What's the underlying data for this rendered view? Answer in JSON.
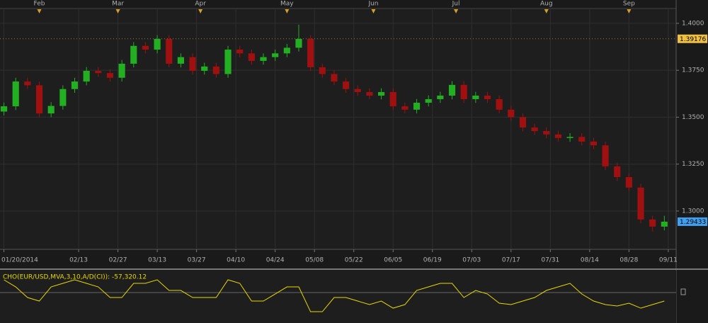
{
  "chart_data": [
    {
      "type": "candlestick",
      "x": [
        0,
        3,
        6,
        9,
        12,
        15,
        18,
        21,
        24,
        27,
        30,
        33,
        36,
        39,
        42,
        45,
        48,
        51,
        54,
        57,
        60,
        63,
        66,
        69,
        72,
        75,
        78,
        81,
        84,
        87,
        90,
        93,
        96,
        99,
        102,
        105,
        108,
        111,
        114,
        117,
        120,
        123,
        126,
        129,
        132,
        135,
        138,
        141,
        144,
        147,
        150,
        153,
        156,
        159,
        162,
        165,
        168
      ],
      "open": [
        1.353,
        1.3558,
        1.369,
        1.367,
        1.352,
        1.356,
        1.365,
        1.369,
        1.3747,
        1.3735,
        1.371,
        1.3785,
        1.388,
        1.386,
        1.3917,
        1.3785,
        1.382,
        1.3747,
        1.377,
        1.373,
        1.386,
        1.384,
        1.38,
        1.382,
        1.384,
        1.387,
        1.3917,
        1.3766,
        1.373,
        1.369,
        1.365,
        1.3634,
        1.3615,
        1.3634,
        1.3558,
        1.354,
        1.3577,
        1.3596,
        1.3615,
        1.3672,
        1.3596,
        1.3615,
        1.3596,
        1.354,
        1.35,
        1.3445,
        1.3426,
        1.3408,
        1.3389,
        1.3395,
        1.337,
        1.335,
        1.3238,
        1.3181,
        1.3125,
        1.2955,
        1.2917
      ],
      "high": [
        1.3578,
        1.371,
        1.371,
        1.369,
        1.358,
        1.367,
        1.371,
        1.3767,
        1.3767,
        1.3755,
        1.3805,
        1.39,
        1.39,
        1.3937,
        1.3937,
        1.384,
        1.384,
        1.379,
        1.379,
        1.388,
        1.388,
        1.386,
        1.384,
        1.386,
        1.389,
        1.3993,
        1.3937,
        1.3786,
        1.375,
        1.371,
        1.367,
        1.3654,
        1.3654,
        1.3654,
        1.3578,
        1.3597,
        1.3616,
        1.3635,
        1.3692,
        1.3692,
        1.3635,
        1.3635,
        1.3616,
        1.356,
        1.352,
        1.3465,
        1.3446,
        1.3428,
        1.3415,
        1.3415,
        1.339,
        1.337,
        1.3258,
        1.3201,
        1.3145,
        1.2975,
        1.2975
      ],
      "low": [
        1.351,
        1.3538,
        1.365,
        1.35,
        1.35,
        1.354,
        1.363,
        1.367,
        1.3715,
        1.369,
        1.369,
        1.3765,
        1.384,
        1.384,
        1.3765,
        1.3765,
        1.3727,
        1.3727,
        1.371,
        1.371,
        1.382,
        1.378,
        1.378,
        1.38,
        1.382,
        1.385,
        1.3746,
        1.371,
        1.367,
        1.363,
        1.3614,
        1.3595,
        1.3595,
        1.3538,
        1.352,
        1.352,
        1.3557,
        1.3576,
        1.3595,
        1.3576,
        1.3576,
        1.3576,
        1.352,
        1.348,
        1.3425,
        1.3406,
        1.3388,
        1.3369,
        1.3369,
        1.335,
        1.333,
        1.3218,
        1.3161,
        1.3105,
        1.2935,
        1.289,
        1.2897
      ],
      "close": [
        1.3558,
        1.369,
        1.367,
        1.352,
        1.356,
        1.365,
        1.369,
        1.3747,
        1.3735,
        1.371,
        1.3785,
        1.388,
        1.386,
        1.3917,
        1.3785,
        1.382,
        1.3747,
        1.377,
        1.373,
        1.386,
        1.384,
        1.38,
        1.382,
        1.384,
        1.387,
        1.3917,
        1.3766,
        1.373,
        1.369,
        1.365,
        1.3634,
        1.3615,
        1.3634,
        1.3558,
        1.354,
        1.3577,
        1.3596,
        1.3615,
        1.3672,
        1.3596,
        1.3615,
        1.3596,
        1.354,
        1.35,
        1.3445,
        1.3426,
        1.3408,
        1.3389,
        1.3395,
        1.337,
        1.335,
        1.3238,
        1.3181,
        1.3125,
        1.2955,
        1.2917,
        1.29433
      ],
      "up_color": "#22b022",
      "down_color": "#a01010",
      "xlim": [
        -1,
        171
      ],
      "ylim": [
        1.2796,
        1.4079
      ],
      "yticks": [
        {
          "value": 1.3,
          "label": "1.3000"
        },
        {
          "value": 1.325,
          "label": "1.3250"
        },
        {
          "value": 1.35,
          "label": "1.3500"
        },
        {
          "value": 1.375,
          "label": "1.3750"
        },
        {
          "value": 1.4,
          "label": "1.4000"
        }
      ],
      "xticks": [
        {
          "value": 0,
          "label": "01/20/2014"
        },
        {
          "value": 19,
          "label": "02/13"
        },
        {
          "value": 29,
          "label": "02/27"
        },
        {
          "value": 39,
          "label": "03/13"
        },
        {
          "value": 49,
          "label": "03/27"
        },
        {
          "value": 59,
          "label": "04/10"
        },
        {
          "value": 69,
          "label": "04/24"
        },
        {
          "value": 79,
          "label": "05/08"
        },
        {
          "value": 89,
          "label": "05/22"
        },
        {
          "value": 99,
          "label": "06/05"
        },
        {
          "value": 109,
          "label": "06/19"
        },
        {
          "value": 119,
          "label": "07/03"
        },
        {
          "value": 129,
          "label": "07/17"
        },
        {
          "value": 139,
          "label": "07/31"
        },
        {
          "value": 149,
          "label": "08/14"
        },
        {
          "value": 159,
          "label": "08/28"
        },
        {
          "value": 169,
          "label": "09/11"
        }
      ],
      "month_ticks": [
        {
          "value": 9,
          "label": "Feb"
        },
        {
          "value": 29,
          "label": "Mar"
        },
        {
          "value": 50,
          "label": "Apr"
        },
        {
          "value": 72,
          "label": "May"
        },
        {
          "value": 94,
          "label": "Jun"
        },
        {
          "value": 115,
          "label": "Jul"
        },
        {
          "value": 138,
          "label": "Aug"
        },
        {
          "value": 159,
          "label": "Sep"
        }
      ],
      "price_markers": [
        {
          "value": 1.39176,
          "color": "#f0c040"
        },
        {
          "value": 1.29433,
          "color": "#3fa0f0"
        }
      ],
      "grid": true
    },
    {
      "type": "line",
      "title": "CHO(EUR/USD,MVA,3,10,A/D(CI)): -57,320.12",
      "color": "#e8d800",
      "x": [
        0,
        3,
        6,
        9,
        12,
        15,
        18,
        21,
        24,
        27,
        30,
        33,
        36,
        39,
        42,
        45,
        48,
        51,
        54,
        57,
        60,
        63,
        66,
        69,
        72,
        75,
        78,
        81,
        84,
        87,
        90,
        93,
        96,
        99,
        102,
        105,
        108,
        111,
        114,
        117,
        120,
        123,
        126,
        129,
        132,
        135,
        138,
        141,
        144,
        147,
        150,
        153,
        156,
        159,
        162,
        165,
        168
      ],
      "values": [
        86400,
        38400,
        -33600,
        -57600,
        38400,
        62400,
        86400,
        62400,
        38400,
        -33600,
        -33600,
        62400,
        62400,
        86400,
        14400,
        14400,
        -33600,
        -33600,
        -33600,
        86400,
        62400,
        -57600,
        -57600,
        -9600,
        38400,
        38400,
        -129600,
        -129600,
        -33600,
        -33600,
        -57600,
        -81600,
        -57600,
        -105600,
        -81600,
        14400,
        38400,
        62400,
        62400,
        -33600,
        14400,
        -9600,
        -72000,
        -81600,
        -57600,
        -33600,
        14400,
        38400,
        62400,
        -9600,
        -57600,
        -81600,
        -91200,
        -72000,
        -105600,
        -81600,
        -57320.12
      ],
      "xlim": [
        -1,
        171
      ],
      "ylim": [
        -187000,
        144000
      ]
    }
  ]
}
